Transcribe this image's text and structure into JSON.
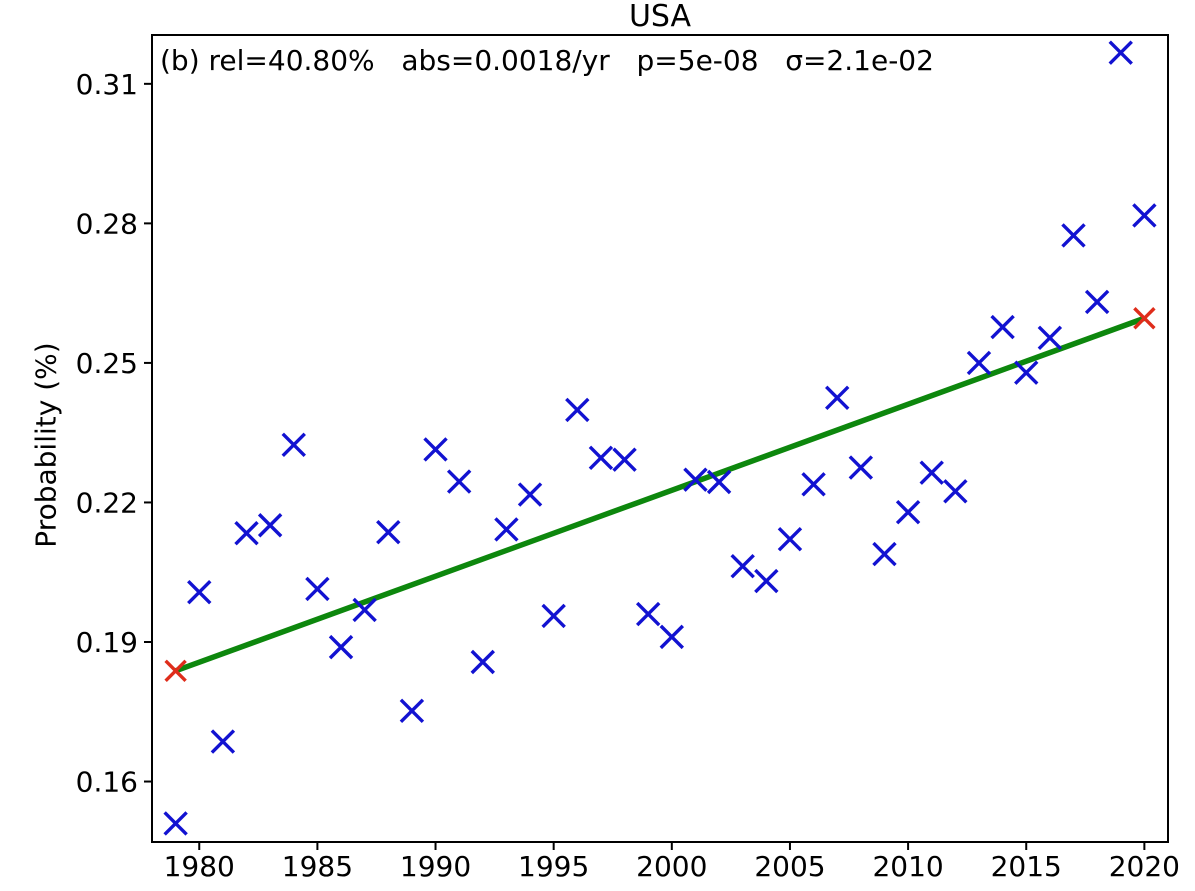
{
  "figure": {
    "background": "#ffffff",
    "frame_color": "#000000"
  },
  "chart_data": {
    "type": "scatter",
    "title": "USA",
    "annotation": "(b) rel=40.80%   abs=0.0018/yr   p=5e-08   σ=2.1e-02",
    "stats": {
      "panel_label": "(b)",
      "rel": "40.80%",
      "abs": "0.0018/yr",
      "p": "5e-08",
      "sigma": "2.1e-02"
    },
    "xlabel": "",
    "ylabel": "Probability (%)",
    "marker": "x",
    "marker_color": "#1212d1",
    "x": [
      1979,
      1980,
      1981,
      1982,
      1983,
      1984,
      1985,
      1986,
      1987,
      1988,
      1989,
      1990,
      1991,
      1992,
      1993,
      1994,
      1995,
      1996,
      1997,
      1998,
      1999,
      2000,
      2001,
      2002,
      2003,
      2004,
      2005,
      2006,
      2007,
      2008,
      2009,
      2010,
      2011,
      2012,
      2013,
      2014,
      2015,
      2016,
      2017,
      2018,
      2019,
      2020
    ],
    "y": [
      0.151,
      0.2007,
      0.1686,
      0.2134,
      0.2151,
      0.2324,
      0.2014,
      0.1889,
      0.1969,
      0.2136,
      0.1752,
      0.2314,
      0.2245,
      0.1857,
      0.2142,
      0.2217,
      0.1956,
      0.2399,
      0.2296,
      0.2292,
      0.196,
      0.1911,
      0.2249,
      0.2244,
      0.2063,
      0.2031,
      0.2121,
      0.2239,
      0.2425,
      0.2275,
      0.2089,
      0.2179,
      0.2264,
      0.2224,
      0.25,
      0.2577,
      0.2479,
      0.2554,
      0.2774,
      0.2631,
      0.3167,
      0.2817
    ],
    "trend_line": {
      "x": [
        1979,
        2020
      ],
      "y": [
        0.1838,
        0.2596
      ],
      "color": "#0d870d",
      "endpoint_marker": "x",
      "endpoint_color": "#df2d1b"
    },
    "xticks": [
      1980,
      1985,
      1990,
      1995,
      2000,
      2005,
      2010,
      2015,
      2020
    ],
    "yticks": [
      0.16,
      0.19,
      0.22,
      0.25,
      0.28,
      0.31
    ],
    "xlim": [
      1978,
      2021
    ],
    "ylim": [
      0.147,
      0.3205
    ],
    "grid": false,
    "legend": null,
    "tick_color": "#000000",
    "text_color": "#000000"
  }
}
